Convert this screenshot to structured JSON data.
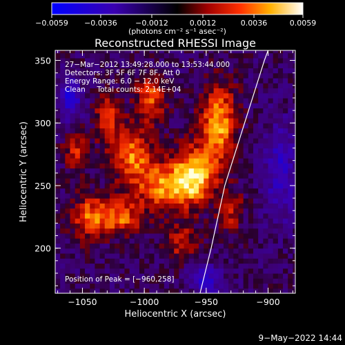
{
  "chart_data": {
    "type": "heatmap",
    "title": "Reconstructed RHESSI Image",
    "xlabel": "Heliocentric X (arcsec)",
    "ylabel": "Heliocentric Y (arcsec)",
    "xlim": [
      -1072,
      -878
    ],
    "ylim": [
      164,
      358
    ],
    "xticks": [
      -1050,
      -1000,
      -950,
      -900
    ],
    "yticks": [
      200,
      250,
      300,
      350
    ],
    "xtick_labels": [
      "−1050",
      "−1000",
      "−950",
      "−900"
    ],
    "ytick_labels": [
      "200",
      "250",
      "300",
      "350"
    ],
    "colorbar": {
      "min": -0.0059,
      "max": 0.0059,
      "ticks": [
        -0.0059,
        -0.0036,
        -0.0012,
        0.0012,
        0.0036,
        0.0059
      ],
      "tick_labels": [
        "−0.0059",
        "−0.0036",
        "−0.0012",
        "0.0012",
        "0.0036",
        "0.0059"
      ],
      "unit_label": "(photons cm⁻² s⁻¹ asec⁻²)"
    },
    "annotations": [
      "27−Mar−2012 13:49:28.000 to 13:53:44.000",
      "Detectors: 3F 5F 6F 7F 8F, Att 0",
      "Energy Range: 6.0 − 12.0 keV",
      "Clean     Total counts: 2.14E+04"
    ],
    "peak_label": "Position of Peak = [−960,258]",
    "peak": [
      -960,
      258
    ],
    "limb_curve": [
      [
        -955,
        164
      ],
      [
        -946,
        200
      ],
      [
        -935,
        250
      ],
      [
        -919,
        300
      ],
      [
        -903,
        350
      ],
      [
        -900,
        358
      ]
    ],
    "colors": {
      "min": "#0000ff",
      "zero": "#000000",
      "max": "#ffffff"
    }
  },
  "footer_timestamp": "9−May−2022 14:44"
}
